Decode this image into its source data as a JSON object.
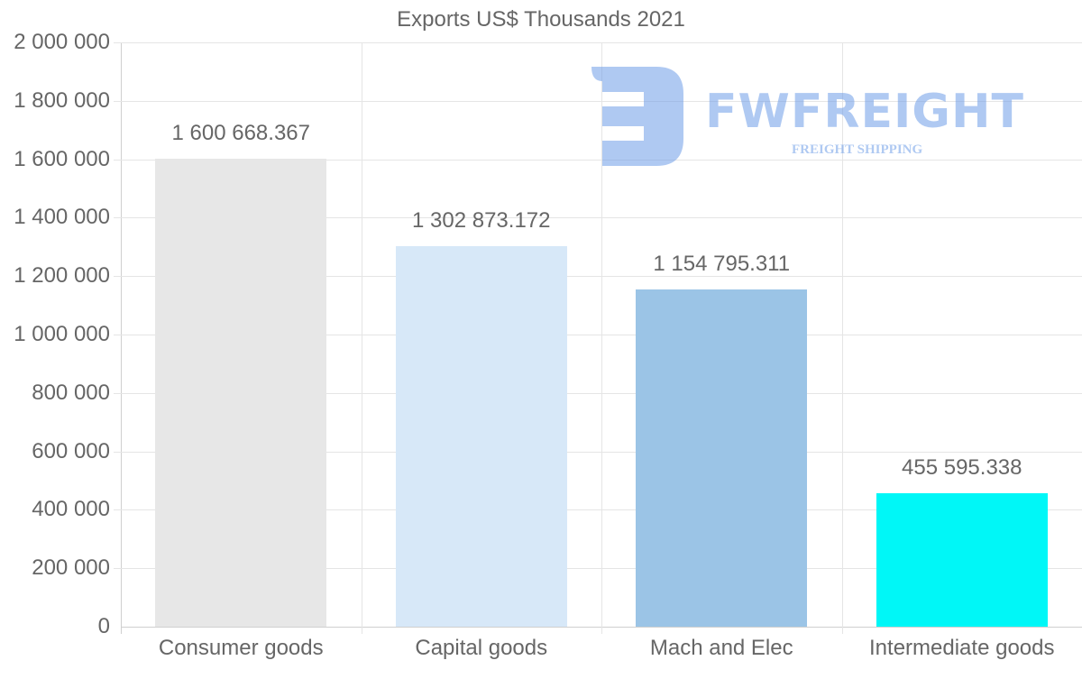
{
  "chart_data": {
    "type": "bar",
    "title": "Exports US$ Thousands 2021",
    "categories": [
      "Consumer goods",
      "Capital goods",
      "Mach and Elec",
      "Intermediate goods"
    ],
    "values": [
      1600668.367,
      1302873.172,
      1154795.311,
      455595.338
    ],
    "value_labels": [
      "1 600 668.367",
      "1 302 873.172",
      "1 154 795.311",
      "455 595.338"
    ],
    "colors": [
      "#e7e7e7",
      "#d7e8f8",
      "#9bc4e6",
      "#00f7f7"
    ],
    "xlabel": "",
    "ylabel": "",
    "ylim": [
      0,
      2000000
    ],
    "yticks": [
      0,
      200000,
      400000,
      600000,
      800000,
      1000000,
      1200000,
      1400000,
      1600000,
      1800000,
      2000000
    ],
    "ytick_labels": [
      "0",
      "200 000",
      "400 000",
      "600 000",
      "800 000",
      "1 000 000",
      "1 200 000",
      "1 400 000",
      "1 600 000",
      "1 800 000",
      "2 000 000"
    ],
    "grid": true,
    "legend": "none"
  },
  "watermark": {
    "brand": "FWFREIGHT",
    "tagline": "FREIGHT SHIPPING"
  }
}
